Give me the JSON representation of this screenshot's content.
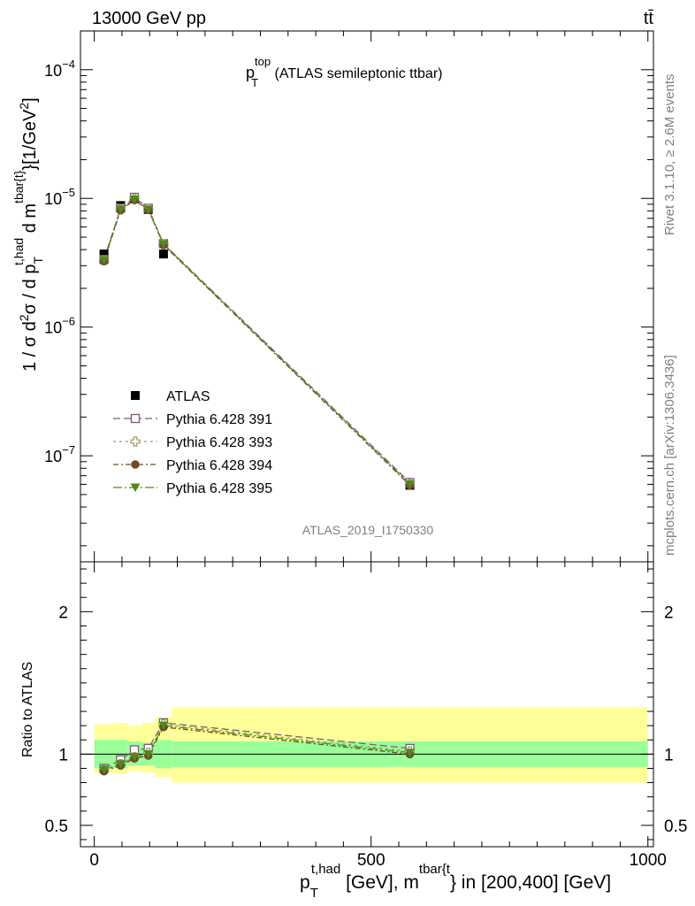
{
  "header": {
    "left": "13000 GeV pp",
    "right": "tt̄"
  },
  "side_text": {
    "rivet": "Rivet 3.1.10, ≥ 2.6M events",
    "mcplots": "mcplots.cern.ch [arXiv:1306.3436]"
  },
  "chart_data": [
    {
      "type": "scatter",
      "title_main": "p",
      "title_sup": "top",
      "title_sub": "T",
      "title_suffix": " (ATLAS semileptonic ttbar)",
      "watermark": "ATLAS_2019_I1750330",
      "ylabel": "1 / σ d²σ / d p_T^{t,had} d m^{tbar{t}} [1/GeV²]",
      "yscale": "log",
      "ylim": [
        1.5e-08,
        0.0002
      ],
      "xlim": [
        -25,
        1010
      ],
      "y_ticks": [
        {
          "value": 1e-07,
          "base": "10",
          "exp": "−7"
        },
        {
          "value": 1e-06,
          "base": "10",
          "exp": "−6"
        },
        {
          "value": 1e-05,
          "base": "10",
          "exp": "−5"
        },
        {
          "value": 0.0001,
          "base": "10",
          "exp": "−4"
        }
      ],
      "legend_position": "center-left",
      "series": [
        {
          "name": "ATLAS",
          "marker": "square-filled",
          "color": "#000000",
          "x": [
            17.5,
            47.5,
            72.5,
            97.5,
            125,
            570
          ],
          "y": [
            3.7e-06,
            8.8e-06,
            1e-05,
            8.2e-06,
            3.7e-06,
            5.9e-08
          ]
        },
        {
          "name": "Pythia 6.428 391",
          "marker": "square-open",
          "color": "#7b5a7a",
          "dash": "8,4",
          "x": [
            17.5,
            47.5,
            72.5,
            97.5,
            125,
            570
          ],
          "y": [
            3.35e-06,
            8.4e-06,
            1.02e-05,
            8.4e-06,
            4.45e-06,
            6.2e-08
          ]
        },
        {
          "name": "Pythia 6.428 393",
          "marker": "cross-open",
          "color": "#a09a5c",
          "dash": "3,4",
          "x": [
            17.5,
            47.5,
            72.5,
            97.5,
            125,
            570
          ],
          "y": [
            3.3e-06,
            8.2e-06,
            9.9e-06,
            8.3e-06,
            4.4e-06,
            6.05e-08
          ]
        },
        {
          "name": "Pythia 6.428 394",
          "marker": "circle-filled",
          "color": "#6b4c2a",
          "dash": "6,3,2,3",
          "x": [
            17.5,
            47.5,
            72.5,
            97.5,
            125,
            570
          ],
          "y": [
            3.25e-06,
            8.1e-06,
            9.7e-06,
            8.15e-06,
            4.35e-06,
            5.9e-08
          ]
        },
        {
          "name": "Pythia 6.428 395",
          "marker": "triangle-down-filled",
          "color": "#4d8a1a",
          "dash": "10,3,2,3",
          "x": [
            17.5,
            47.5,
            72.5,
            97.5,
            125,
            570
          ],
          "y": [
            3.3e-06,
            8.2e-06,
            9.8e-06,
            8.2e-06,
            4.4e-06,
            6e-08
          ]
        }
      ]
    },
    {
      "type": "scatter",
      "ylabel": "Ratio to ATLAS",
      "xlabel": "p_T^{t,had} [GeV], m^{tbar{t}} in [200,400] [GeV]",
      "ylim": [
        0.35,
        2.35
      ],
      "xlim": [
        -25,
        1010
      ],
      "y_ticks": [
        {
          "value": 0.5,
          "label": "0.5"
        },
        {
          "value": 1,
          "label": "1"
        },
        {
          "value": 2,
          "label": "2"
        }
      ],
      "x_ticks": [
        {
          "value": 0,
          "label": "0"
        },
        {
          "value": 500,
          "label": "500"
        },
        {
          "value": 1000,
          "label": "1000"
        }
      ],
      "reference_line": 1,
      "uncertainty_bands": {
        "x_edges": [
          0,
          35,
          60,
          85,
          110,
          140,
          1000
        ],
        "inner": [
          [
            0.9,
            1.1
          ],
          [
            0.9,
            1.1
          ],
          [
            0.92,
            1.09
          ],
          [
            0.92,
            1.08
          ],
          [
            0.9,
            1.1
          ],
          [
            0.91,
            1.09
          ]
        ],
        "outer": [
          [
            0.87,
            1.21
          ],
          [
            0.86,
            1.22
          ],
          [
            0.88,
            1.2
          ],
          [
            0.87,
            1.22
          ],
          [
            0.84,
            1.26
          ],
          [
            0.8,
            1.33
          ]
        ],
        "inner_color": "#99ff99",
        "outer_color": "#ffff99"
      },
      "series": [
        {
          "name": "Pythia 6.428 391",
          "marker": "square-open",
          "color": "#7b5a7a",
          "dash": "8,4",
          "x": [
            17.5,
            47.5,
            72.5,
            97.5,
            125,
            570
          ],
          "y": [
            0.9,
            0.96,
            1.03,
            1.04,
            1.22,
            1.04
          ]
        },
        {
          "name": "Pythia 6.428 393",
          "marker": "cross-open",
          "color": "#a09a5c",
          "dash": "3,4",
          "x": [
            17.5,
            47.5,
            72.5,
            97.5,
            125,
            570
          ],
          "y": [
            0.89,
            0.93,
            0.98,
            1.01,
            1.21,
            1.02
          ]
        },
        {
          "name": "Pythia 6.428 394",
          "marker": "circle-filled",
          "color": "#6b4c2a",
          "dash": "6,3,2,3",
          "x": [
            17.5,
            47.5,
            72.5,
            97.5,
            125,
            570
          ],
          "y": [
            0.88,
            0.92,
            0.97,
            0.99,
            1.19,
            1.0
          ]
        },
        {
          "name": "Pythia 6.428 395",
          "marker": "triangle-down-filled",
          "color": "#4d8a1a",
          "dash": "10,3,2,3",
          "x": [
            17.5,
            47.5,
            72.5,
            97.5,
            125,
            570
          ],
          "y": [
            0.89,
            0.93,
            0.98,
            1.0,
            1.2,
            1.01
          ]
        }
      ]
    }
  ]
}
